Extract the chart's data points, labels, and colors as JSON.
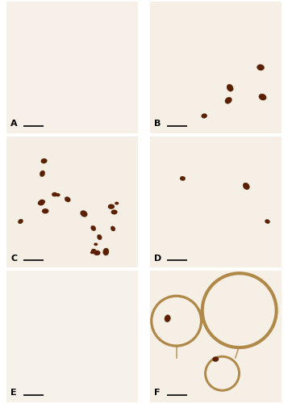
{
  "figure_size": [
    3.57,
    5.0
  ],
  "dpi": 100,
  "background_color": "#ffffff",
  "border_color": "#aaaaaa",
  "labels": [
    "A",
    "B",
    "C",
    "D",
    "E",
    "F"
  ],
  "label_fontsize": 8,
  "label_color": "#000000",
  "scalebar_color": "#000000",
  "grid_rows": 3,
  "grid_cols": 2,
  "hspace": 0.025,
  "wspace": 0.025,
  "panel_bg": "#f8f3ed",
  "wall_colors": [
    "#c8a87a",
    "#b8936a",
    "#a07840",
    "#d4b890"
  ],
  "macro_color": "#5C2000",
  "seeds": [
    42,
    137,
    256,
    512,
    99,
    777
  ],
  "panels": [
    {
      "n_points": 120,
      "wall_lw": 0.5,
      "wall_alpha": 0.55,
      "wall_color": "#c4a070",
      "n_macro": 0,
      "bg": "#f6f0e8",
      "density_scale": 1.0
    },
    {
      "n_points": 80,
      "wall_lw": 0.7,
      "wall_alpha": 0.75,
      "wall_color": "#b08040",
      "n_macro": 5,
      "bg": "#f5efe6",
      "density_scale": 1.0
    },
    {
      "n_points": 45,
      "wall_lw": 0.9,
      "wall_alpha": 0.9,
      "wall_color": "#a07030",
      "n_macro": 9,
      "bg": "#f4eee4",
      "density_scale": 1.2
    },
    {
      "n_points": 75,
      "wall_lw": 0.6,
      "wall_alpha": 0.7,
      "wall_color": "#b89060",
      "n_macro": 3,
      "bg": "#f5efe6",
      "density_scale": 1.0
    },
    {
      "n_points": 110,
      "wall_lw": 0.45,
      "wall_alpha": 0.5,
      "wall_color": "#c8aa80",
      "n_macro": 0,
      "bg": "#f6f1e9",
      "density_scale": 1.0
    },
    {
      "n_points": 30,
      "wall_lw": 0.8,
      "wall_alpha": 0.8,
      "wall_color": "#b08848",
      "n_macro": 2,
      "bg": "#f5efe5",
      "density_scale": 1.0
    }
  ]
}
